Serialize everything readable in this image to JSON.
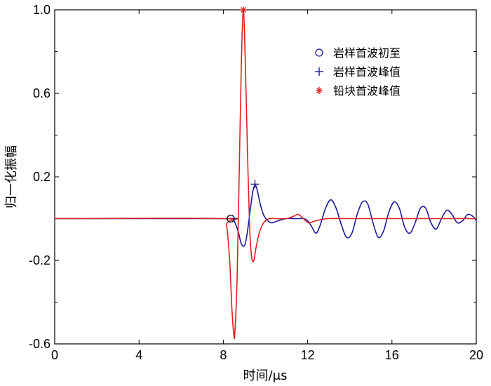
{
  "chart_data": {
    "type": "line",
    "xlabel": "时间/μs",
    "ylabel": "归一化振幅",
    "xlim": [
      0,
      20
    ],
    "ylim": [
      -0.6,
      1.0
    ],
    "xticks": [
      "0",
      "4",
      "8",
      "12",
      "16",
      "20"
    ],
    "xtick_values": [
      0,
      4,
      8,
      12,
      16,
      20
    ],
    "yticks": [
      "-0.6",
      "-0.2",
      "0.2",
      "0.6",
      "1.0"
    ],
    "ytick_values": [
      -0.6,
      -0.2,
      0.2,
      0.6,
      1.0
    ],
    "grid": false,
    "legend_position": "top-right",
    "legend": [
      {
        "label": "岩样首波初至",
        "marker": "circle",
        "color": "#1a1aa0"
      },
      {
        "label": "岩样首波峰值",
        "marker": "plus",
        "color": "#1a1aa0"
      },
      {
        "label": "铅块首波峰值",
        "marker": "asterisk",
        "color": "#e02020"
      }
    ],
    "series": [
      {
        "color": "#1a1aa0",
        "x": [
          0,
          8.0,
          8.3,
          8.5,
          8.7,
          8.85,
          9.0,
          9.1,
          9.2,
          9.3,
          9.4,
          9.5,
          9.6,
          9.75,
          9.9,
          10.1,
          10.3,
          10.6,
          11.0,
          11.5,
          11.8,
          12.0,
          12.2,
          12.4,
          12.6,
          12.85,
          13.1,
          13.35,
          13.6,
          13.85,
          14.1,
          14.35,
          14.6,
          14.85,
          15.1,
          15.35,
          15.6,
          15.85,
          16.1,
          16.35,
          16.6,
          16.85,
          17.1,
          17.35,
          17.6,
          17.85,
          18.1,
          18.35,
          18.6,
          18.85,
          19.1,
          19.35,
          19.6,
          19.85,
          20.0
        ],
        "y": [
          0.0,
          0.0,
          0.0,
          -0.01,
          -0.06,
          -0.12,
          -0.13,
          -0.09,
          -0.02,
          0.06,
          0.13,
          0.16,
          0.14,
          0.07,
          0.02,
          -0.01,
          -0.02,
          -0.01,
          0.0,
          0.0,
          0.0,
          -0.01,
          -0.04,
          -0.07,
          -0.03,
          0.05,
          0.09,
          0.05,
          -0.03,
          -0.09,
          -0.07,
          0.02,
          0.08,
          0.07,
          -0.02,
          -0.09,
          -0.06,
          0.03,
          0.08,
          0.05,
          -0.04,
          -0.07,
          -0.02,
          0.05,
          0.05,
          -0.02,
          -0.05,
          0.0,
          0.04,
          0.02,
          -0.02,
          -0.01,
          0.02,
          0.01,
          -0.01
        ]
      },
      {
        "color": "#e02020",
        "x": [
          0,
          8.0,
          8.15,
          8.3,
          8.4,
          8.5,
          8.55,
          8.65,
          8.75,
          8.85,
          8.95,
          9.05,
          9.15,
          9.25,
          9.35,
          9.45,
          9.55,
          9.7,
          9.85,
          10.0,
          10.2,
          10.5,
          11.0,
          11.3,
          11.55,
          11.8,
          12.05,
          12.4,
          13.0,
          14.0,
          15.0,
          16.0,
          17.0,
          18.0,
          19.0,
          20.0
        ],
        "y": [
          0.0,
          0.0,
          -0.03,
          -0.2,
          -0.42,
          -0.56,
          -0.54,
          -0.3,
          0.2,
          0.72,
          1.0,
          0.72,
          0.3,
          -0.05,
          -0.19,
          -0.2,
          -0.14,
          -0.07,
          -0.03,
          -0.01,
          0.0,
          0.0,
          0.0,
          0.01,
          0.02,
          0.0,
          -0.02,
          -0.01,
          0.0,
          0.0,
          0.0,
          0.0,
          0.0,
          0.0,
          0.0,
          0.0
        ]
      }
    ],
    "markers": [
      {
        "marker": "circle",
        "color": "#1a1aa0",
        "x": 8.35,
        "y": 0.0
      },
      {
        "marker": "plus",
        "color": "#1a1aa0",
        "x": 9.5,
        "y": 0.165
      },
      {
        "marker": "asterisk",
        "color": "#e02020",
        "x": 8.95,
        "y": 1.0
      }
    ]
  }
}
